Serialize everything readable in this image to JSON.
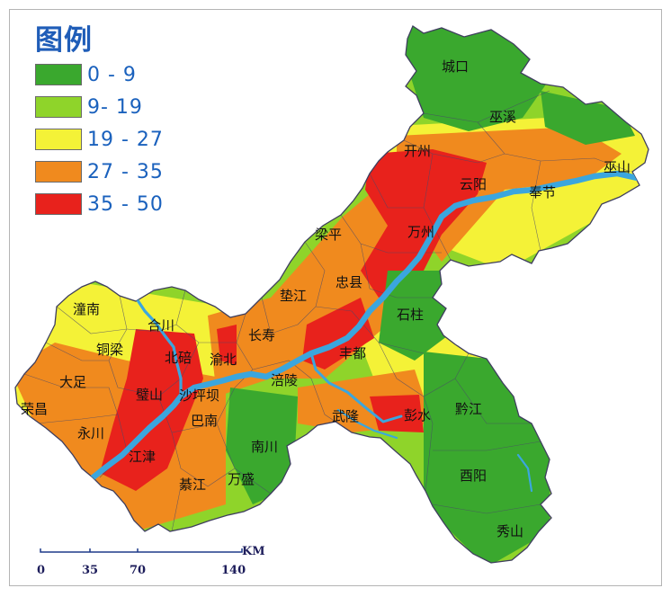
{
  "legend": {
    "title": "图例",
    "classes": [
      {
        "label": "0 - 9",
        "color": "#3aa82e"
      },
      {
        "label": "9- 19",
        "color": "#8fd42a"
      },
      {
        "label": "19 - 27",
        "color": "#f4f237"
      },
      {
        "label": "27 - 35",
        "color": "#f08a1e"
      },
      {
        "label": "35 - 50",
        "color": "#e8221c"
      }
    ]
  },
  "colors": {
    "river": "#3ba6de",
    "boundary": "#4a4a6a",
    "scalebar": "#1e3a8a"
  },
  "places": [
    "城口",
    "巫溪",
    "巫山",
    "开州",
    "云阳",
    "奉节",
    "梁平",
    "万州",
    "垫江",
    "忠县",
    "石柱",
    "潼南",
    "合川",
    "长寿",
    "铜梁",
    "北碚",
    "渝北",
    "丰都",
    "大足",
    "涪陵",
    "荣昌",
    "璧山",
    "沙坪坝",
    "永川",
    "巴南",
    "武隆",
    "彭水",
    "黔江",
    "南川",
    "江津",
    "綦江",
    "万盛",
    "酉阳",
    "秀山"
  ],
  "scalebar": {
    "unit": "KM",
    "ticks": [
      "0",
      "35",
      "70",
      "140"
    ]
  }
}
